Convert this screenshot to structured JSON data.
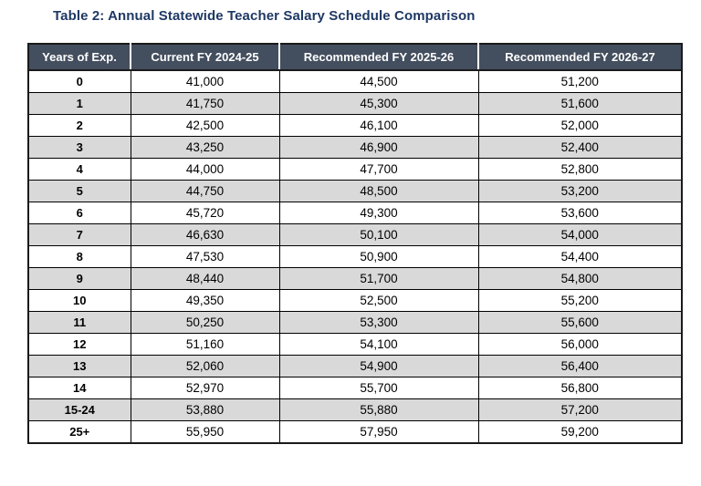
{
  "title": "Table 2: Annual Statewide Teacher Salary Schedule Comparison",
  "table": {
    "columns": [
      "Years of Exp.",
      "Current FY 2024-25",
      "Recommended FY 2025-26",
      "Recommended FY 2026-27"
    ],
    "rows": [
      [
        "0",
        "41,000",
        "44,500",
        "51,200"
      ],
      [
        "1",
        "41,750",
        "45,300",
        "51,600"
      ],
      [
        "2",
        "42,500",
        "46,100",
        "52,000"
      ],
      [
        "3",
        "43,250",
        "46,900",
        "52,400"
      ],
      [
        "4",
        "44,000",
        "47,700",
        "52,800"
      ],
      [
        "5",
        "44,750",
        "48,500",
        "53,200"
      ],
      [
        "6",
        "45,720",
        "49,300",
        "53,600"
      ],
      [
        "7",
        "46,630",
        "50,100",
        "54,000"
      ],
      [
        "8",
        "47,530",
        "50,900",
        "54,400"
      ],
      [
        "9",
        "48,440",
        "51,700",
        "54,800"
      ],
      [
        "10",
        "49,350",
        "52,500",
        "55,200"
      ],
      [
        "11",
        "50,250",
        "53,300",
        "55,600"
      ],
      [
        "12",
        "51,160",
        "54,100",
        "56,000"
      ],
      [
        "13",
        "52,060",
        "54,900",
        "56,400"
      ],
      [
        "14",
        "52,970",
        "55,700",
        "56,800"
      ],
      [
        "15-24",
        "53,880",
        "55,880",
        "57,200"
      ],
      [
        "25+",
        "55,950",
        "57,950",
        "59,200"
      ]
    ]
  },
  "colors": {
    "title_text": "#1F3864",
    "header_bg": "#434E5E",
    "header_text": "#FFFFFF",
    "stripe_bg": "#D9D9D9",
    "row_bg": "#FFFFFF",
    "border": "#000000"
  }
}
